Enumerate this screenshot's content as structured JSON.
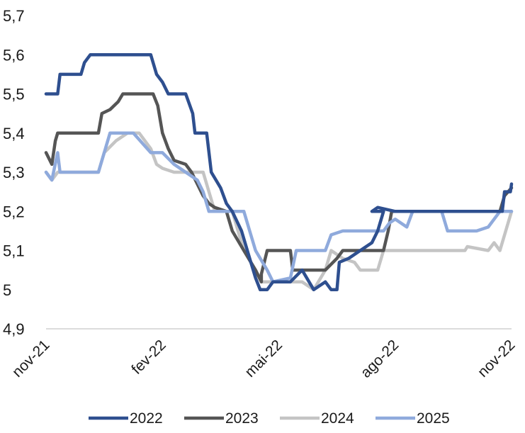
{
  "chart_data": {
    "type": "line",
    "title": "",
    "xlabel": "",
    "ylabel": "",
    "ylim": [
      4.9,
      5.7
    ],
    "yticks": [
      "4,9",
      "5",
      "5,1",
      "5,2",
      "5,3",
      "5,4",
      "5,5",
      "5,6",
      "5,7"
    ],
    "xticks": [
      "nov-21",
      "fev-22",
      "mai-22",
      "ago-22",
      "nov-22"
    ],
    "grid": false,
    "legend_position": "bottom",
    "series": [
      {
        "name": "2022",
        "color": "#2e4f8f",
        "points": [
          [
            "nov-21",
            5.5
          ],
          [
            "nov-21+0.10",
            5.5
          ],
          [
            "nov-21+0.12",
            5.55
          ],
          [
            "nov-21+0.30",
            5.55
          ],
          [
            "nov-21+0.33",
            5.58
          ],
          [
            "nov-21+0.38",
            5.6
          ],
          [
            "fev-22-0.10",
            5.6
          ],
          [
            "fev-22-0.05",
            5.55
          ],
          [
            "fev-22",
            5.53
          ],
          [
            "fev-22+0.05",
            5.5
          ],
          [
            "fev-22+0.20",
            5.5
          ],
          [
            "fev-22+0.26",
            5.45
          ],
          [
            "fev-22+0.28",
            5.4
          ],
          [
            "fev-22+0.38",
            5.4
          ],
          [
            "fev-22+0.42",
            5.3
          ],
          [
            "fev-22+0.50",
            5.26
          ],
          [
            "fev-22+0.55",
            5.22
          ],
          [
            "fev-22+0.60",
            5.2
          ],
          [
            "fev-22+0.68",
            5.15
          ],
          [
            "fev-22+0.75",
            5.08
          ],
          [
            "fev-22+0.80",
            5.03
          ],
          [
            "fev-22+0.84",
            5.0
          ],
          [
            "mai-22-0.10",
            5.0
          ],
          [
            "mai-22-0.05",
            5.02
          ],
          [
            "mai-22+0.10",
            5.02
          ],
          [
            "mai-22+0.20",
            5.05
          ],
          [
            "mai-22+0.30",
            5.0
          ],
          [
            "mai-22+0.40",
            5.02
          ],
          [
            "mai-22+0.45",
            5.0
          ],
          [
            "mai-22+0.50",
            5.0
          ],
          [
            "mai-22+0.52",
            5.07
          ],
          [
            "mai-22+0.60",
            5.08
          ],
          [
            "mai-22+0.70",
            5.1
          ],
          [
            "mai-22+0.80",
            5.12
          ],
          [
            "mai-22+0.85",
            5.15
          ],
          [
            "mai-22+0.90",
            5.2
          ],
          [
            "ago-22-0.20",
            5.2
          ],
          [
            "ago-22-0.15",
            5.21
          ],
          [
            "ago-22",
            5.2
          ],
          [
            "nov-22-0.08",
            5.2
          ],
          [
            "nov-22-0.06",
            5.25
          ],
          [
            "nov-22-0.01",
            5.25
          ],
          [
            "nov-22",
            5.27
          ]
        ]
      },
      {
        "name": "2023",
        "color": "#555555",
        "points": [
          [
            "nov-21",
            5.35
          ],
          [
            "nov-21+0.05",
            5.32
          ],
          [
            "nov-21+0.08",
            5.38
          ],
          [
            "nov-21+0.10",
            5.4
          ],
          [
            "nov-21+0.45",
            5.4
          ],
          [
            "nov-21+0.48",
            5.45
          ],
          [
            "nov-21+0.55",
            5.46
          ],
          [
            "nov-21+0.62",
            5.48
          ],
          [
            "nov-21+0.66",
            5.5
          ],
          [
            "fev-22-0.08",
            5.5
          ],
          [
            "fev-22-0.04",
            5.47
          ],
          [
            "fev-22",
            5.4
          ],
          [
            "fev-22+0.05",
            5.36
          ],
          [
            "fev-22+0.10",
            5.33
          ],
          [
            "fev-22+0.20",
            5.32
          ],
          [
            "fev-22+0.25",
            5.3
          ],
          [
            "fev-22+0.30",
            5.27
          ],
          [
            "fev-22+0.35",
            5.24
          ],
          [
            "fev-22+0.40",
            5.22
          ],
          [
            "fev-22+0.45",
            5.21
          ],
          [
            "fev-22+0.55",
            5.2
          ],
          [
            "fev-22+0.60",
            5.15
          ],
          [
            "fev-22+0.70",
            5.1
          ],
          [
            "fev-22+0.80",
            5.05
          ],
          [
            "fev-22+0.85",
            5.02
          ],
          [
            "mai-22-0.15",
            5.04
          ],
          [
            "mai-22-0.10",
            5.1
          ],
          [
            "mai-22+0.10",
            5.1
          ],
          [
            "mai-22+0.12",
            5.05
          ],
          [
            "mai-22+0.30",
            5.05
          ],
          [
            "mai-22+0.40",
            5.05
          ],
          [
            "mai-22+0.50",
            5.08
          ],
          [
            "mai-22+0.55",
            5.1
          ],
          [
            "mai-22+0.90",
            5.1
          ],
          [
            "mai-22+0.94",
            5.15
          ],
          [
            "mai-22+0.97",
            5.2
          ],
          [
            "nov-22-0.10",
            5.2
          ],
          [
            "nov-22-0.06",
            5.24
          ],
          [
            "nov-22",
            5.26
          ]
        ]
      },
      {
        "name": "2024",
        "color": "#c4c4c4",
        "points": [
          [
            "nov-21",
            5.3
          ],
          [
            "nov-21+0.05",
            5.28
          ],
          [
            "nov-21+0.10",
            5.3
          ],
          [
            "nov-21+0.45",
            5.3
          ],
          [
            "nov-21+0.50",
            5.35
          ],
          [
            "nov-21+0.60",
            5.38
          ],
          [
            "nov-21+0.70",
            5.4
          ],
          [
            "fev-22-0.20",
            5.4
          ],
          [
            "fev-22-0.10",
            5.36
          ],
          [
            "fev-22-0.05",
            5.32
          ],
          [
            "fev-22",
            5.31
          ],
          [
            "fev-22+0.10",
            5.3
          ],
          [
            "fev-22+0.35",
            5.3
          ],
          [
            "fev-22+0.40",
            5.25
          ],
          [
            "fev-22+0.45",
            5.2
          ],
          [
            "fev-22+0.60",
            5.2
          ],
          [
            "fev-22+0.65",
            5.15
          ],
          [
            "fev-22+0.70",
            5.1
          ],
          [
            "fev-22+0.80",
            5.05
          ],
          [
            "fev-22+0.85",
            5.02
          ],
          [
            "mai-22-0.10",
            5.02
          ],
          [
            "mai-22+0.20",
            5.02
          ],
          [
            "mai-22+0.30",
            5.0
          ],
          [
            "mai-22+0.40",
            5.05
          ],
          [
            "mai-22+0.45",
            5.1
          ],
          [
            "mai-22+0.55",
            5.08
          ],
          [
            "mai-22+0.65",
            5.07
          ],
          [
            "mai-22+0.70",
            5.05
          ],
          [
            "mai-22+0.85",
            5.05
          ],
          [
            "mai-22+0.90",
            5.1
          ],
          [
            "nov-22-0.40",
            5.1
          ],
          [
            "nov-22-0.38",
            5.11
          ],
          [
            "nov-22-0.20",
            5.1
          ],
          [
            "nov-22-0.15",
            5.12
          ],
          [
            "nov-22-0.10",
            5.1
          ],
          [
            "nov-22-0.05",
            5.15
          ],
          [
            "nov-22",
            5.2
          ]
        ]
      },
      {
        "name": "2025",
        "color": "#8faadc",
        "points": [
          [
            "nov-21",
            5.3
          ],
          [
            "nov-21+0.05",
            5.28
          ],
          [
            "nov-21+0.10",
            5.35
          ],
          [
            "nov-21+0.12",
            5.3
          ],
          [
            "nov-21+0.45",
            5.3
          ],
          [
            "nov-21+0.50",
            5.35
          ],
          [
            "nov-21+0.55",
            5.4
          ],
          [
            "fev-22-0.25",
            5.4
          ],
          [
            "fev-22-0.10",
            5.35
          ],
          [
            "fev-22",
            5.35
          ],
          [
            "fev-22+0.10",
            5.32
          ],
          [
            "fev-22+0.20",
            5.3
          ],
          [
            "fev-22+0.30",
            5.28
          ],
          [
            "fev-22+0.35",
            5.25
          ],
          [
            "fev-22+0.40",
            5.2
          ],
          [
            "fev-22+0.70",
            5.2
          ],
          [
            "fev-22+0.75",
            5.15
          ],
          [
            "fev-22+0.80",
            5.1
          ],
          [
            "fev-22+0.90",
            5.05
          ],
          [
            "mai-22-0.05",
            5.02
          ],
          [
            "mai-22+0.10",
            5.03
          ],
          [
            "mai-22+0.15",
            5.1
          ],
          [
            "mai-22+0.40",
            5.1
          ],
          [
            "mai-22+0.45",
            5.14
          ],
          [
            "mai-22+0.55",
            5.15
          ],
          [
            "mai-22+0.90",
            5.15
          ],
          [
            "mai-22+0.95",
            5.17
          ],
          [
            "ago-22-0.05",
            5.17
          ],
          [
            "ago-22",
            5.18
          ],
          [
            "ago-22+0.10",
            5.16
          ],
          [
            "ago-22+0.15",
            5.2
          ],
          [
            "ago-22+0.40",
            5.2
          ],
          [
            "ago-22+0.45",
            5.15
          ],
          [
            "nov-22-0.30",
            5.15
          ],
          [
            "nov-22-0.20",
            5.16
          ],
          [
            "nov-22-0.10",
            5.2
          ],
          [
            "nov-22",
            5.2
          ]
        ]
      }
    ]
  }
}
